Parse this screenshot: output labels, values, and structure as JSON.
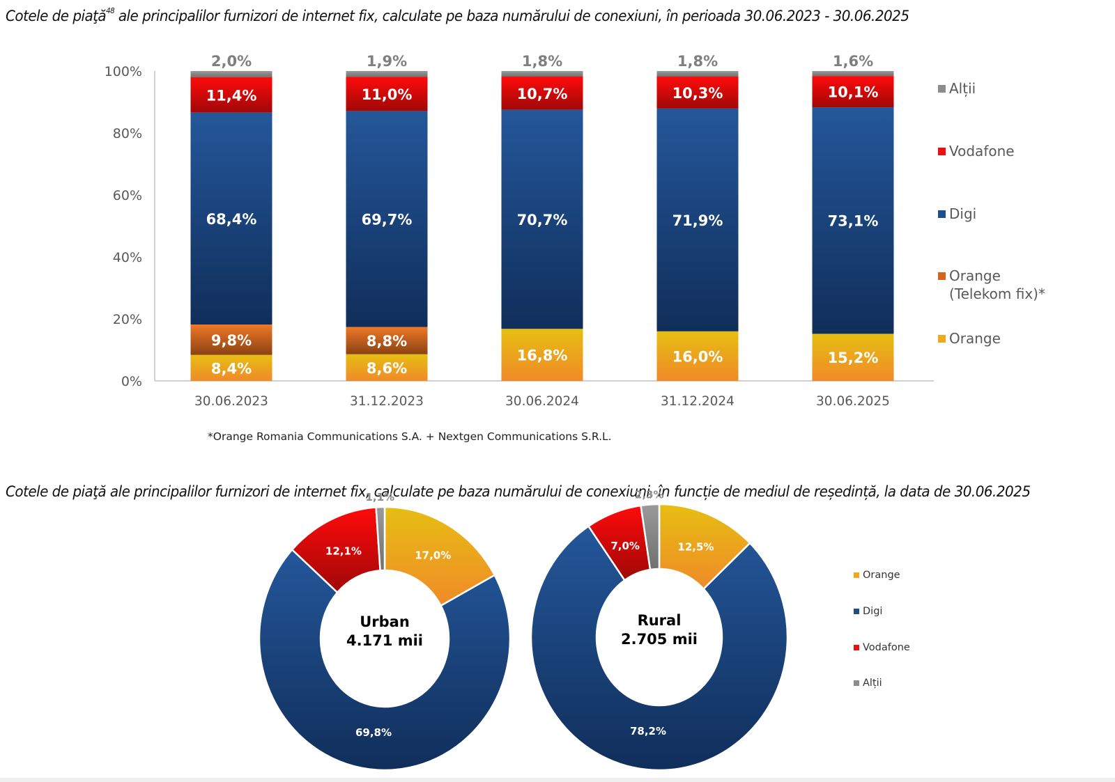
{
  "titles": {
    "top_prefix": "Cotele de piaţă",
    "top_footnote_ref": "48",
    "top_suffix": " ale principalilor furnizori de internet fix, calculate pe baza numărului de conexiuni, în perioada 30.06.2023 - 30.06.2025",
    "bottom": "Cotele de piaţă ale principalilor furnizori de internet fix, calculate pe baza numărului de conexiuni, în funcție de mediul de reședință, la data de 30.06.2025"
  },
  "footnote": "*Orange Romania Communications S.A. + Nextgen Communications S.R.L.",
  "colors": {
    "orange": "#F0A81E",
    "telekom": "#D4641E",
    "digi": "#1F4E8C",
    "vodafone": "#E81010",
    "altii": "#8C8C8C"
  },
  "chart_data": [
    {
      "type": "bar",
      "stacked": true,
      "title": "Cotele de piaţă ale principalilor furnizori de internet fix, calculate pe baza numărului de conexiuni, în perioada 30.06.2023 - 30.06.2025",
      "categories": [
        "30.06.2023",
        "31.12.2023",
        "30.06.2024",
        "31.12.2024",
        "30.06.2025"
      ],
      "yticks": [
        "0%",
        "20%",
        "40%",
        "60%",
        "80%",
        "100%"
      ],
      "ylim": [
        0,
        100
      ],
      "xlabel": "",
      "ylabel": "",
      "legend_position": "right",
      "series": [
        {
          "name": "Orange",
          "key": "orange",
          "values": [
            8.4,
            8.6,
            16.8,
            16.0,
            15.2
          ],
          "labels": [
            "8,4%",
            "8,6%",
            "16,8%",
            "16,0%",
            "15,2%"
          ]
        },
        {
          "name": "Orange (Telekom fix)*",
          "key": "telekom",
          "values": [
            9.8,
            8.8,
            0,
            0,
            0
          ],
          "labels": [
            "9,8%",
            "8,8%",
            "",
            "",
            ""
          ]
        },
        {
          "name": "Digi",
          "key": "digi",
          "values": [
            68.4,
            69.7,
            70.7,
            71.9,
            73.1
          ],
          "labels": [
            "68,4%",
            "69,7%",
            "70,7%",
            "71,9%",
            "73,1%"
          ]
        },
        {
          "name": "Vodafone",
          "key": "vodafone",
          "values": [
            11.4,
            11.0,
            10.7,
            10.3,
            10.1
          ],
          "labels": [
            "11,4%",
            "11,0%",
            "10,7%",
            "10,3%",
            "10,1%"
          ]
        },
        {
          "name": "Alții",
          "key": "altii",
          "values": [
            2.0,
            1.9,
            1.8,
            1.8,
            1.6
          ],
          "labels": [
            "2,0%",
            "1,9%",
            "1,8%",
            "1,8%",
            "1,6%"
          ]
        }
      ],
      "legend": [
        {
          "name": "Alții",
          "key": "altii"
        },
        {
          "name": "Vodafone",
          "key": "vodafone"
        },
        {
          "name": "Digi",
          "key": "digi"
        },
        {
          "name": "Orange",
          "name2": "(Telekom fix)*",
          "key": "telekom"
        },
        {
          "name": "Orange",
          "key": "orange"
        }
      ]
    },
    {
      "type": "pie",
      "donut": true,
      "title": "Cotele de piaţă ale principalilor furnizori de internet fix, calculate pe baza numărului de conexiuni, în funcție de mediul de reședință, la data de 30.06.2025",
      "legend_position": "right",
      "legend": [
        {
          "name": "Orange",
          "key": "orange"
        },
        {
          "name": "Digi",
          "key": "digi"
        },
        {
          "name": "Vodafone",
          "key": "vodafone"
        },
        {
          "name": "Alții",
          "key": "altii"
        }
      ],
      "charts": [
        {
          "name": "Urban",
          "center_label": "Urban",
          "center_value": "4.171 mii",
          "slices": [
            {
              "name": "Orange",
              "key": "orange",
              "value": 17.0,
              "label": "17,0%"
            },
            {
              "name": "Digi",
              "key": "digi",
              "value": 69.8,
              "label": "69,8%"
            },
            {
              "name": "Vodafone",
              "key": "vodafone",
              "value": 12.1,
              "label": "12,1%"
            },
            {
              "name": "Alții",
              "key": "altii",
              "value": 1.1,
              "label": "1,1%"
            }
          ]
        },
        {
          "name": "Rural",
          "center_label": "Rural",
          "center_value": "2.705 mii",
          "slices": [
            {
              "name": "Orange",
              "key": "orange",
              "value": 12.5,
              "label": "12,5%"
            },
            {
              "name": "Digi",
              "key": "digi",
              "value": 78.2,
              "label": "78,2%"
            },
            {
              "name": "Vodafone",
              "key": "vodafone",
              "value": 7.0,
              "label": "7,0%"
            },
            {
              "name": "Alții",
              "key": "altii",
              "value": 2.3,
              "label": "2,3%"
            }
          ]
        }
      ]
    }
  ]
}
